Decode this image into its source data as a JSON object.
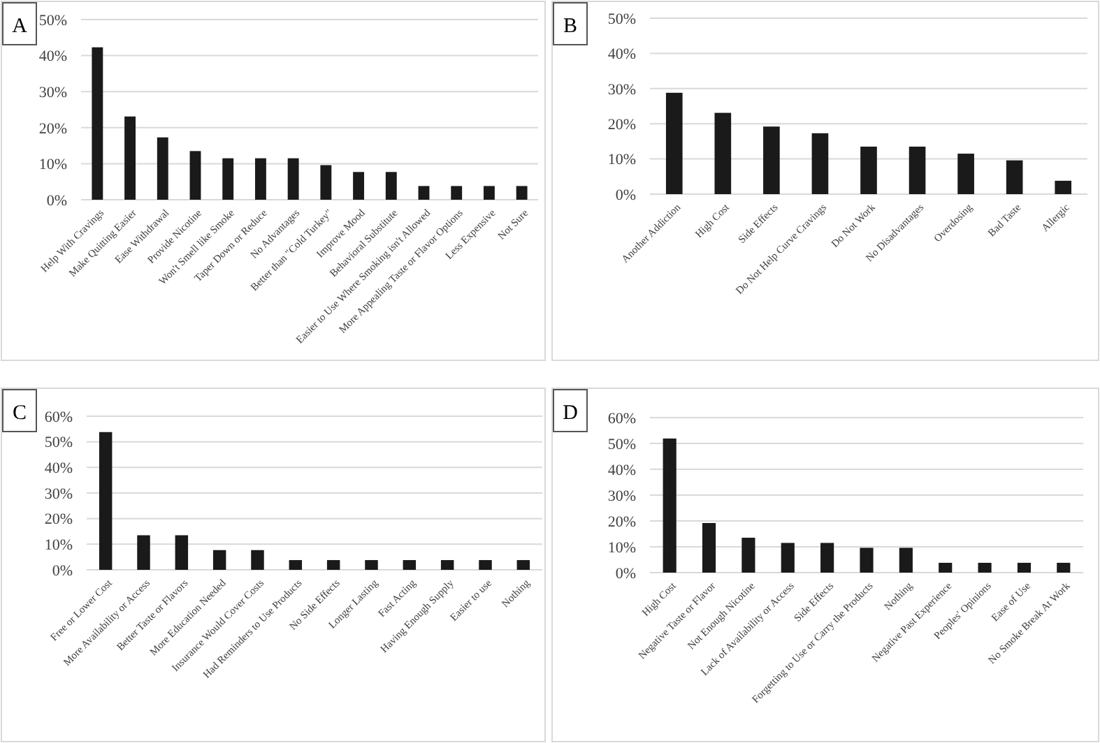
{
  "chart_data": [
    {
      "type": "bar",
      "title": "A",
      "categories": [
        "Help With Cravings",
        "Make Quitting Easier",
        "Ease Withdrawal",
        "Provide Nicotine",
        "Won't Smell like Smoke",
        "Taper Down or Reduce",
        "No Advantages",
        "Better than \"Cold Turkey\"",
        "Improve Mood",
        "Behavioral Substitute",
        "Easier to Use Where Smoking isn't Allowed",
        "More Appealing Taste or Flavor Options",
        "Less Expensive",
        "Not Sure"
      ],
      "values": [
        42.3,
        23.1,
        17.3,
        13.5,
        11.5,
        11.5,
        11.5,
        9.6,
        7.7,
        7.7,
        3.8,
        3.8,
        3.8,
        3.8
      ],
      "color": "#1a1a1a",
      "ylim": [
        0,
        50
      ],
      "yticks": [
        {
          "value": 0,
          "label": "0%"
        },
        {
          "value": 10,
          "label": "10%"
        },
        {
          "value": 20,
          "label": "20%"
        },
        {
          "value": 30,
          "label": "30%"
        },
        {
          "value": 40,
          "label": "40%"
        },
        {
          "value": 50,
          "label": "50%"
        }
      ],
      "grid": "y"
    },
    {
      "type": "bar",
      "title": "B",
      "categories": [
        "Another Addiction",
        "High Cost",
        "Side Effects",
        "Do Not Help Curve Cravings",
        "Do Not Work",
        "No Disadvantages",
        "Overdosing",
        "Bad Taste",
        "Allergic"
      ],
      "values": [
        28.8,
        23.1,
        19.2,
        17.3,
        13.5,
        13.5,
        11.5,
        9.6,
        3.8
      ],
      "color": "#1a1a1a",
      "ylim": [
        0,
        50
      ],
      "yticks": [
        {
          "value": 0,
          "label": "0%"
        },
        {
          "value": 10,
          "label": "10%"
        },
        {
          "value": 20,
          "label": "20%"
        },
        {
          "value": 30,
          "label": "30%"
        },
        {
          "value": 40,
          "label": "40%"
        },
        {
          "value": 50,
          "label": "50%"
        }
      ],
      "grid": "y"
    },
    {
      "type": "bar",
      "title": "C",
      "categories": [
        "Free or Lower Cost",
        "More Availability or Access",
        "Better Taste or Flavors",
        "More Education Needed",
        "Insurance Would Cover Costs",
        "Had Reminders to Use Products",
        "No Side Effects",
        "Longer Lasting",
        "Fast Acting",
        "Having Enough Supply",
        "Easier to use",
        "Nothing"
      ],
      "values": [
        53.8,
        13.5,
        13.5,
        7.7,
        7.7,
        3.8,
        3.8,
        3.8,
        3.8,
        3.8,
        3.8,
        3.8
      ],
      "color": "#1a1a1a",
      "ylim": [
        0,
        60
      ],
      "yticks": [
        {
          "value": 0,
          "label": "0%"
        },
        {
          "value": 10,
          "label": "10%"
        },
        {
          "value": 20,
          "label": "20%"
        },
        {
          "value": 30,
          "label": "30%"
        },
        {
          "value": 40,
          "label": "40%"
        },
        {
          "value": 50,
          "label": "50%"
        },
        {
          "value": 60,
          "label": "60%"
        }
      ],
      "grid": "y"
    },
    {
      "type": "bar",
      "title": "D",
      "categories": [
        "High Cost",
        "Negative Taste or Flavor",
        "Not Enough Nicotine",
        "Lack of Availability or Access",
        "Side Effects",
        "Forgetting to Use or Carry the Products",
        "Nothing",
        "Negative Past Experience",
        "Peoples' Opinions",
        "Ease of Use",
        "No Smoke Break At Work"
      ],
      "values": [
        51.9,
        19.2,
        13.5,
        11.5,
        11.5,
        9.6,
        9.6,
        3.8,
        3.8,
        3.8,
        3.8
      ],
      "color": "#1a1a1a",
      "ylim": [
        0,
        60
      ],
      "yticks": [
        {
          "value": 0,
          "label": "0%"
        },
        {
          "value": 10,
          "label": "10%"
        },
        {
          "value": 20,
          "label": "20%"
        },
        {
          "value": 30,
          "label": "30%"
        },
        {
          "value": 40,
          "label": "40%"
        },
        {
          "value": 50,
          "label": "50%"
        },
        {
          "value": 60,
          "label": "60%"
        }
      ],
      "grid": "y"
    }
  ]
}
